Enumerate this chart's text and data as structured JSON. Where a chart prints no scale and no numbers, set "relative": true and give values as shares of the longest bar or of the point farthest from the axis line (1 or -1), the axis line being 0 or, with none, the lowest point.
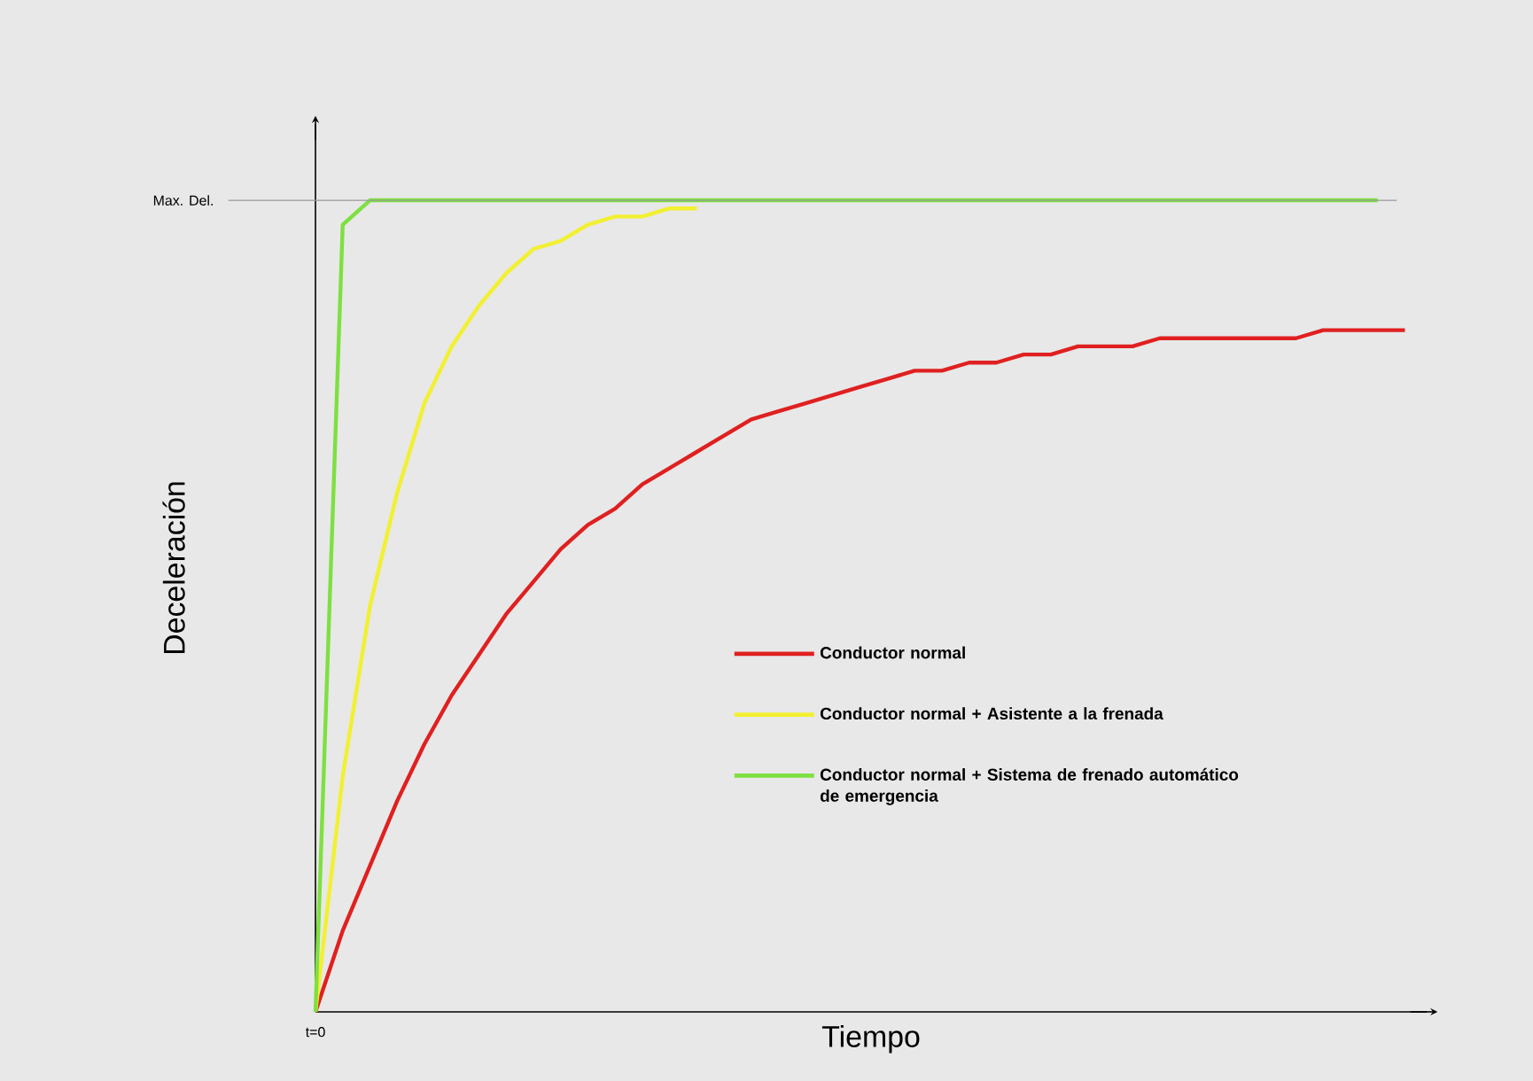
{
  "chart_data": {
    "type": "line",
    "relative": true,
    "xlabel": "Tiempo",
    "ylabel": "Deceleración",
    "categories": [
      null,
      null,
      null,
      null,
      null,
      null,
      null,
      null,
      null,
      null,
      null,
      null,
      null,
      null,
      null,
      null,
      null,
      null,
      null,
      null,
      null,
      null,
      null,
      null,
      null,
      null,
      null,
      null,
      null,
      null,
      null,
      null,
      null,
      null,
      null,
      null,
      null,
      null,
      null,
      null,
      null
    ],
    "series": [
      {
        "name": "Conductor normal",
        "color": "#e02020",
        "values": [
          0,
          0.1,
          0.18,
          0.26,
          0.33,
          0.39,
          0.44,
          0.49,
          0.53,
          0.57,
          0.6,
          0.62,
          0.65,
          0.67,
          0.69,
          0.71,
          0.73,
          0.74,
          0.75,
          0.76,
          0.77,
          0.78,
          0.79,
          0.79,
          0.8,
          0.8,
          0.81,
          0.81,
          0.82,
          0.82,
          0.82,
          0.83,
          0.83,
          0.83,
          0.83,
          0.83,
          0.83,
          0.84,
          0.84,
          0.84,
          0.84
        ]
      },
      {
        "name": "Conductor normal + Asistente a la frenada",
        "color": "#f2f030",
        "values": [
          0,
          0.29,
          0.5,
          0.64,
          0.75,
          0.82,
          0.87,
          0.91,
          0.94,
          0.95,
          0.97,
          0.98,
          0.98,
          0.99,
          0.99,
          null,
          null,
          null,
          null,
          null,
          null,
          null,
          null,
          null,
          null,
          null,
          null,
          null,
          null,
          null,
          null,
          null,
          null,
          null,
          null,
          null,
          null,
          null,
          null,
          null,
          null
        ]
      },
      {
        "name": "Conductor normal + Sistema de frenado automático de emergencia",
        "color": "#7ee040",
        "values": [
          0,
          0.97,
          1,
          1,
          1,
          1,
          1,
          1,
          1,
          1,
          1,
          1,
          1,
          1,
          1,
          1,
          1,
          1,
          1,
          1,
          1,
          1,
          1,
          1,
          1,
          1,
          1,
          1,
          1,
          1,
          1,
          1,
          1,
          1,
          1,
          1,
          1,
          1,
          1,
          1,
          null
        ]
      }
    ],
    "ref_lines": [
      {
        "axis": "y",
        "value": 1,
        "label": "Max. Del.",
        "color": "#999999"
      }
    ],
    "annotations": [
      "t=0"
    ],
    "legend": "bottom right",
    "line_style": "solid",
    "marker": "none"
  }
}
